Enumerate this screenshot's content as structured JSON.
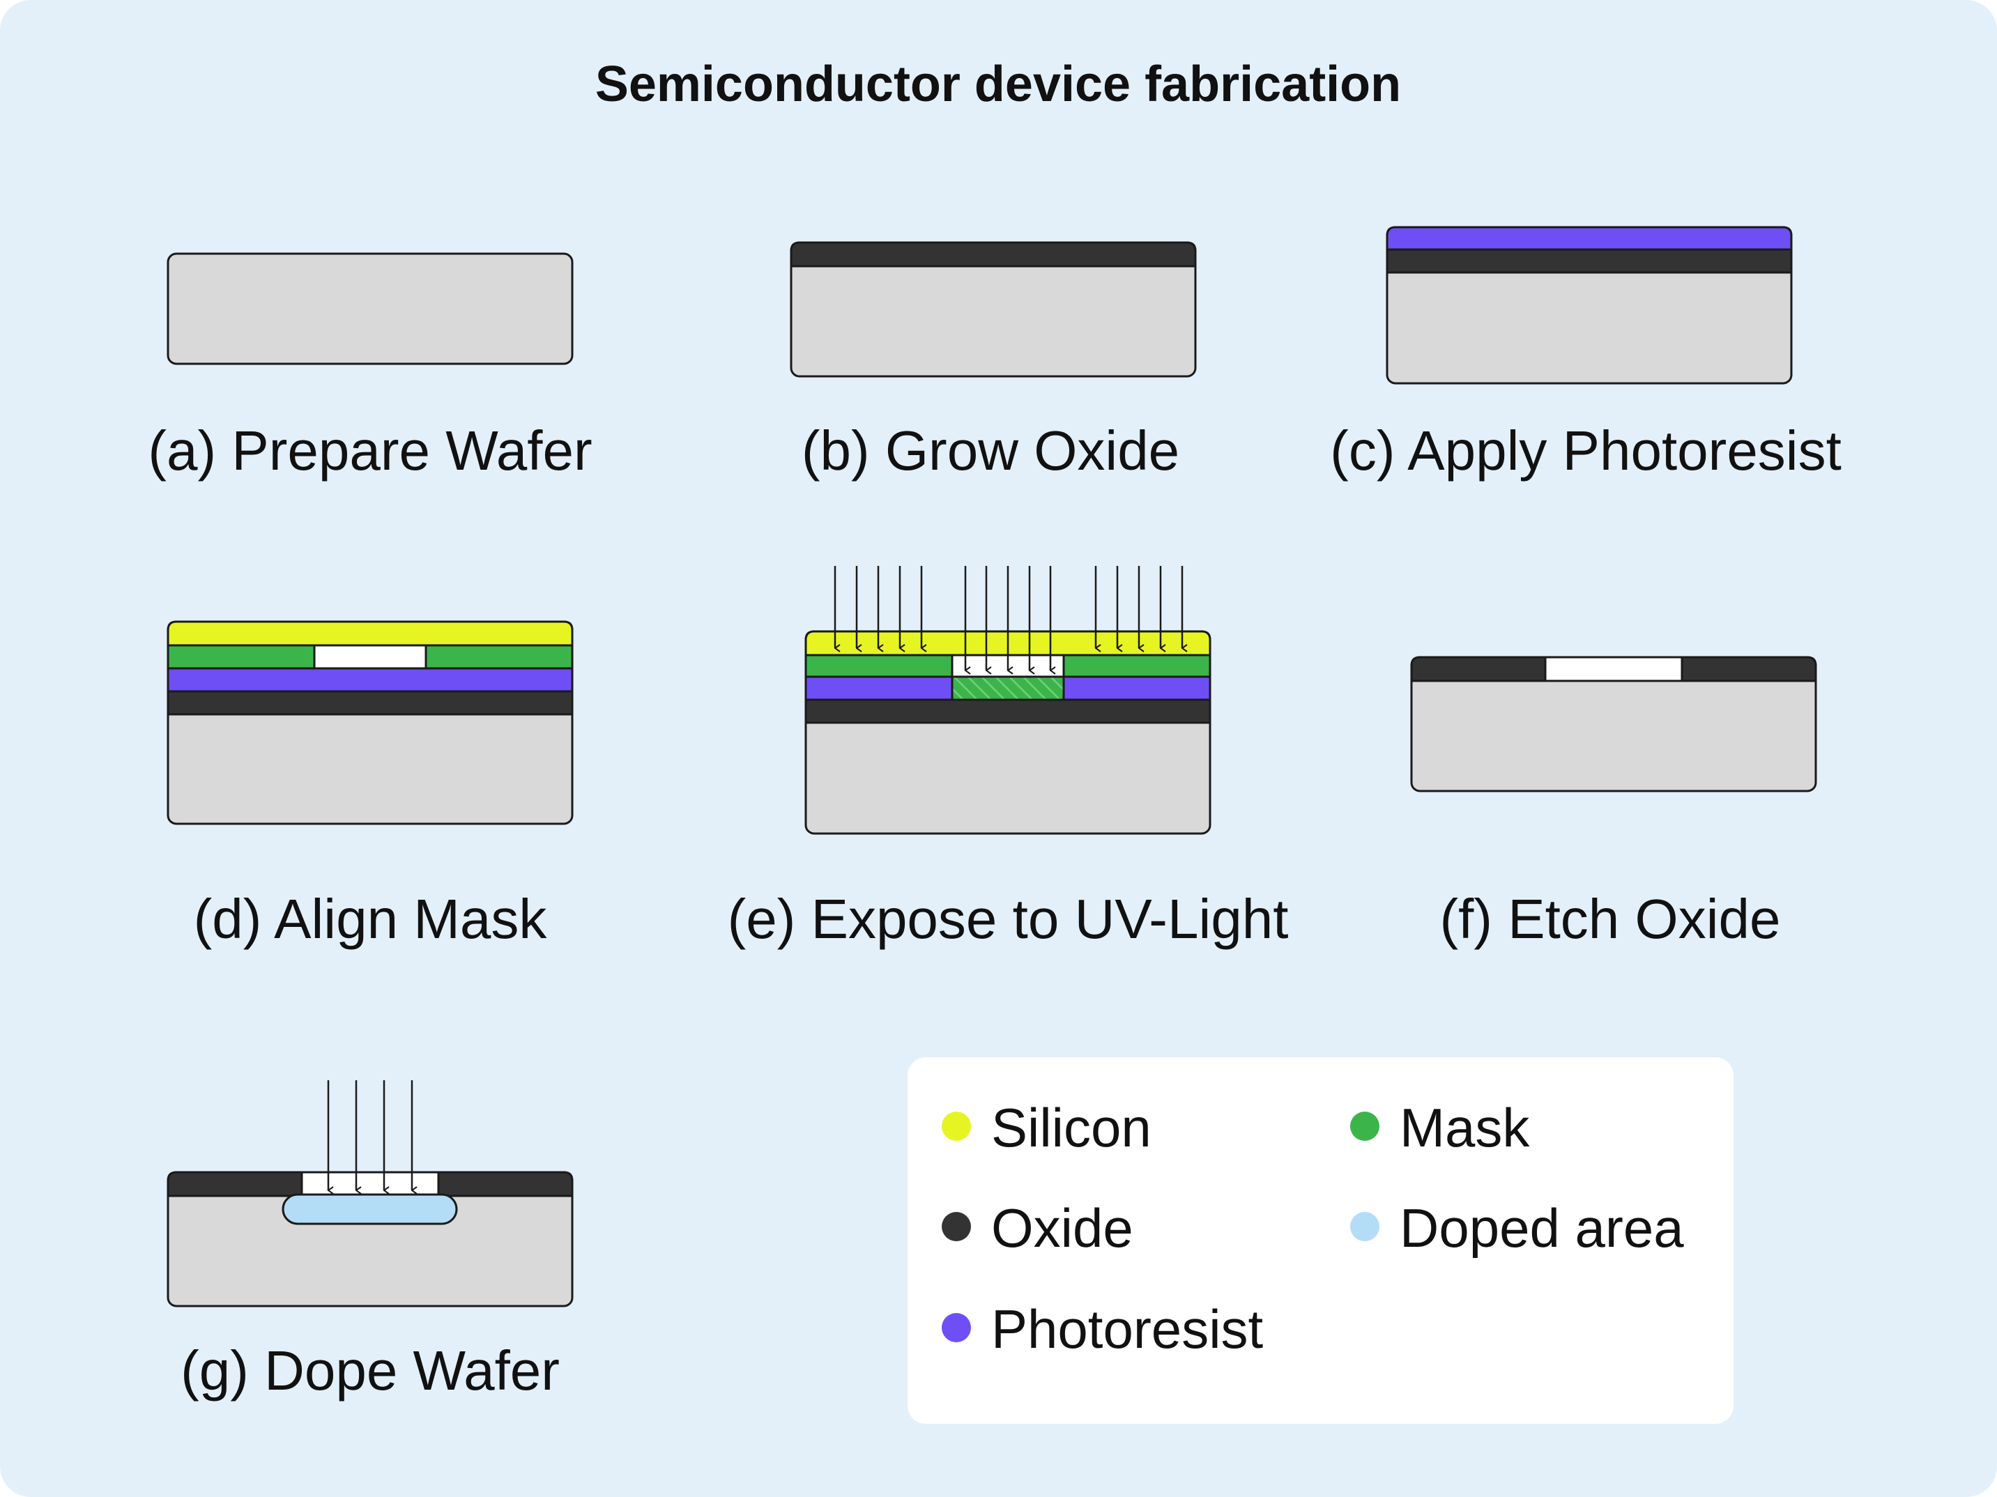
{
  "title": "Semiconductor device fabrication",
  "colors": {
    "background": "#e3f0fa",
    "wafer": "#d9d9d9",
    "outline": "#1a1a1a",
    "oxide": "#333333",
    "photoresist": "#6e4ff5",
    "silicon": "#e6f522",
    "mask": "#3bb54a",
    "doped_area": "#b3dcf7",
    "exposed_opening": "#ffffff",
    "legend_box": "#ffffff"
  },
  "steps": [
    {
      "id": "a",
      "label": "(a) Prepare Wafer"
    },
    {
      "id": "b",
      "label": "(b) Grow Oxide"
    },
    {
      "id": "c",
      "label": "(c) Apply Photoresist"
    },
    {
      "id": "d",
      "label": "(d) Align Mask"
    },
    {
      "id": "e",
      "label": "(e) Expose to UV-Light"
    },
    {
      "id": "f",
      "label": "(f) Etch Oxide"
    },
    {
      "id": "g",
      "label": "(g) Dope Wafer"
    }
  ],
  "legend": [
    {
      "name": "Silicon",
      "color": "#e6f522"
    },
    {
      "name": "Mask",
      "color": "#3bb54a"
    },
    {
      "name": "Oxide",
      "color": "#333333"
    },
    {
      "name": "Doped area",
      "color": "#b3dcf7"
    },
    {
      "name": "Photoresist",
      "color": "#6e4ff5"
    }
  ]
}
